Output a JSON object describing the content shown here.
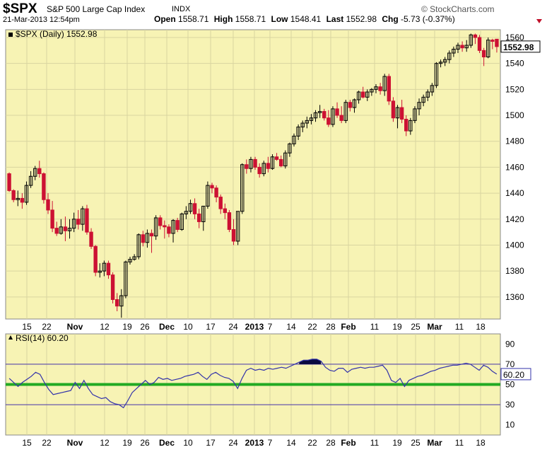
{
  "header": {
    "symbol": "$SPX",
    "name": "S&P 500 Large Cap Index",
    "exchange": "INDX",
    "logo": "© StockCharts.com",
    "datetime": "21-Mar-2013 12:54pm",
    "open_label": "Open",
    "open": "1558.71",
    "high_label": "High",
    "high": "1558.71",
    "low_label": "Low",
    "low": "1548.41",
    "last_label": "Last",
    "last": "1552.98",
    "chg_label": "Chg",
    "chg": "-5.73 (-0.37%)"
  },
  "colors": {
    "up": "#000000",
    "down": "#cc1133",
    "panel_bg": "#f7f3b4",
    "rsi_line": "#3333aa",
    "midline": "#22aa22",
    "guide": "#4433aa"
  },
  "chart_data": [
    {
      "type": "candlestick",
      "legend": "$SPX (Daily) 1552.98",
      "last_label": "1552.98",
      "y_ticks": [
        1360,
        1380,
        1400,
        1420,
        1440,
        1460,
        1480,
        1500,
        1520,
        1540,
        1560
      ],
      "ylim": [
        1343,
        1566
      ],
      "x_tick_labels": [
        "15",
        "22",
        "Nov",
        "12",
        "19",
        "26",
        "Dec",
        "10",
        "17",
        "24",
        "2013",
        "7",
        "14",
        "22",
        "28",
        "Feb",
        "11",
        "19",
        "25",
        "Mar",
        "11",
        "18"
      ],
      "ohlc": [
        [
          1455,
          1456,
          1441,
          1442
        ],
        [
          1442,
          1443,
          1433,
          1435
        ],
        [
          1435,
          1442,
          1430,
          1436
        ],
        [
          1436,
          1440,
          1428,
          1433
        ],
        [
          1433,
          1449,
          1431,
          1446
        ],
        [
          1446,
          1457,
          1444,
          1453
        ],
        [
          1453,
          1461,
          1450,
          1459
        ],
        [
          1459,
          1465,
          1452,
          1455
        ],
        [
          1455,
          1456,
          1432,
          1435
        ],
        [
          1435,
          1440,
          1424,
          1427
        ],
        [
          1427,
          1434,
          1410,
          1413
        ],
        [
          1413,
          1418,
          1407,
          1409
        ],
        [
          1409,
          1420,
          1408,
          1414
        ],
        [
          1414,
          1422,
          1403,
          1411
        ],
        [
          1411,
          1420,
          1405,
          1413
        ],
        [
          1413,
          1425,
          1410,
          1420
        ],
        [
          1420,
          1427,
          1412,
          1416
        ],
        [
          1416,
          1430,
          1411,
          1428
        ],
        [
          1428,
          1431,
          1408,
          1410
        ],
        [
          1410,
          1413,
          1397,
          1399
        ],
        [
          1399,
          1400,
          1376,
          1379
        ],
        [
          1379,
          1386,
          1375,
          1380
        ],
        [
          1380,
          1388,
          1376,
          1386
        ],
        [
          1386,
          1388,
          1374,
          1377
        ],
        [
          1377,
          1379,
          1355,
          1358
        ],
        [
          1358,
          1363,
          1349,
          1353
        ],
        [
          1353,
          1366,
          1344,
          1361
        ],
        [
          1361,
          1388,
          1359,
          1387
        ],
        [
          1387,
          1391,
          1385,
          1389
        ],
        [
          1389,
          1393,
          1388,
          1391
        ],
        [
          1391,
          1409,
          1389,
          1408
        ],
        [
          1408,
          1411,
          1399,
          1402
        ],
        [
          1402,
          1412,
          1398,
          1409
        ],
        [
          1409,
          1412,
          1394,
          1407
        ],
        [
          1407,
          1423,
          1404,
          1421
        ],
        [
          1421,
          1423,
          1412,
          1415
        ],
        [
          1415,
          1419,
          1405,
          1414
        ],
        [
          1414,
          1416,
          1406,
          1409
        ],
        [
          1409,
          1420,
          1402,
          1419
        ],
        [
          1419,
          1421,
          1410,
          1412
        ],
        [
          1412,
          1425,
          1411,
          1424
        ],
        [
          1424,
          1430,
          1420,
          1426
        ],
        [
          1426,
          1435,
          1424,
          1432
        ],
        [
          1432,
          1436,
          1420,
          1424
        ],
        [
          1424,
          1428,
          1413,
          1418
        ],
        [
          1418,
          1430,
          1411,
          1430
        ],
        [
          1430,
          1449,
          1428,
          1446
        ],
        [
          1446,
          1448,
          1440,
          1444
        ],
        [
          1444,
          1446,
          1433,
          1437
        ],
        [
          1437,
          1439,
          1424,
          1428
        ],
        [
          1428,
          1432,
          1420,
          1425
        ],
        [
          1425,
          1427,
          1410,
          1412
        ],
        [
          1412,
          1420,
          1400,
          1403
        ],
        [
          1403,
          1426,
          1400,
          1426
        ],
        [
          1426,
          1463,
          1424,
          1462
        ],
        [
          1462,
          1466,
          1455,
          1459
        ],
        [
          1459,
          1468,
          1456,
          1466
        ],
        [
          1466,
          1468,
          1458,
          1460
        ],
        [
          1460,
          1463,
          1452,
          1455
        ],
        [
          1455,
          1465,
          1453,
          1463
        ],
        [
          1463,
          1468,
          1456,
          1459
        ],
        [
          1459,
          1470,
          1458,
          1468
        ],
        [
          1468,
          1471,
          1465,
          1466
        ],
        [
          1466,
          1469,
          1460,
          1461
        ],
        [
          1461,
          1473,
          1459,
          1471
        ],
        [
          1471,
          1479,
          1468,
          1478
        ],
        [
          1478,
          1486,
          1476,
          1484
        ],
        [
          1484,
          1493,
          1481,
          1491
        ],
        [
          1491,
          1496,
          1487,
          1494
        ],
        [
          1494,
          1499,
          1490,
          1496
        ],
        [
          1496,
          1501,
          1493,
          1498
        ],
        [
          1498,
          1504,
          1495,
          1502
        ],
        [
          1502,
          1508,
          1498,
          1503
        ],
        [
          1503,
          1505,
          1496,
          1498
        ],
        [
          1498,
          1504,
          1491,
          1493
        ],
        [
          1493,
          1507,
          1491,
          1505
        ],
        [
          1505,
          1510,
          1498,
          1500
        ],
        [
          1500,
          1507,
          1494,
          1496
        ],
        [
          1496,
          1512,
          1494,
          1510
        ],
        [
          1510,
          1512,
          1503,
          1506
        ],
        [
          1506,
          1513,
          1502,
          1512
        ],
        [
          1512,
          1519,
          1509,
          1518
        ],
        [
          1518,
          1522,
          1513,
          1514
        ],
        [
          1514,
          1520,
          1511,
          1518
        ],
        [
          1518,
          1521,
          1515,
          1520
        ],
        [
          1520,
          1524,
          1517,
          1522
        ],
        [
          1522,
          1525,
          1516,
          1519
        ],
        [
          1519,
          1532,
          1515,
          1530
        ],
        [
          1530,
          1532,
          1508,
          1511
        ],
        [
          1511,
          1514,
          1495,
          1498
        ],
        [
          1498,
          1508,
          1490,
          1506
        ],
        [
          1506,
          1512,
          1494,
          1497
        ],
        [
          1497,
          1500,
          1484,
          1488
        ],
        [
          1488,
          1498,
          1485,
          1496
        ],
        [
          1496,
          1507,
          1494,
          1505
        ],
        [
          1505,
          1513,
          1500,
          1510
        ],
        [
          1510,
          1516,
          1507,
          1514
        ],
        [
          1514,
          1520,
          1511,
          1518
        ],
        [
          1518,
          1525,
          1515,
          1523
        ],
        [
          1523,
          1541,
          1521,
          1540
        ],
        [
          1540,
          1543,
          1537,
          1541
        ],
        [
          1541,
          1545,
          1538,
          1543
        ],
        [
          1543,
          1550,
          1540,
          1548
        ],
        [
          1548,
          1553,
          1545,
          1551
        ],
        [
          1551,
          1556,
          1548,
          1554
        ],
        [
          1554,
          1557,
          1549,
          1552
        ],
        [
          1552,
          1558,
          1549,
          1554
        ],
        [
          1554,
          1563,
          1552,
          1562
        ],
        [
          1562,
          1563,
          1555,
          1560
        ],
        [
          1560,
          1562,
          1548,
          1550
        ],
        [
          1550,
          1552,
          1538,
          1545
        ],
        [
          1545,
          1560,
          1544,
          1558
        ],
        [
          1558,
          1559,
          1551,
          1557
        ],
        [
          1558.71,
          1558.71,
          1548.41,
          1552.98
        ]
      ]
    },
    {
      "type": "line",
      "legend": "RSI(14) 60.20",
      "last_label": "60.20",
      "y_ticks": [
        10,
        30,
        50,
        70,
        90
      ],
      "ylim": [
        0,
        100
      ],
      "overbought": 70,
      "oversold": 30,
      "midline": 50,
      "x_tick_labels": [
        "15",
        "22",
        "Nov",
        "12",
        "19",
        "26",
        "Dec",
        "10",
        "17",
        "24",
        "2013",
        "7",
        "14",
        "22",
        "28",
        "Feb",
        "11",
        "19",
        "25",
        "Mar",
        "11",
        "18"
      ],
      "values": [
        56,
        52,
        48,
        52,
        55,
        58,
        62,
        60,
        52,
        45,
        40,
        41,
        42,
        43,
        44,
        52,
        46,
        54,
        46,
        40,
        38,
        36,
        37,
        33,
        31,
        30,
        27,
        34,
        42,
        46,
        50,
        54,
        50,
        52,
        57,
        55,
        56,
        54,
        55,
        56,
        58,
        59,
        60,
        62,
        58,
        55,
        60,
        62,
        59,
        57,
        56,
        53,
        46,
        56,
        64,
        66,
        64,
        65,
        64,
        66,
        65,
        66,
        67,
        66,
        68,
        70,
        72,
        74,
        74,
        75,
        75,
        73,
        67,
        64,
        63,
        66,
        66,
        62,
        65,
        66,
        67,
        66,
        67,
        67,
        68,
        69,
        64,
        54,
        52,
        56,
        48,
        54,
        56,
        58,
        59,
        61,
        63,
        64,
        66,
        67,
        68,
        69,
        69,
        70,
        71,
        70,
        67,
        64,
        69,
        67,
        63,
        60.2
      ]
    }
  ]
}
